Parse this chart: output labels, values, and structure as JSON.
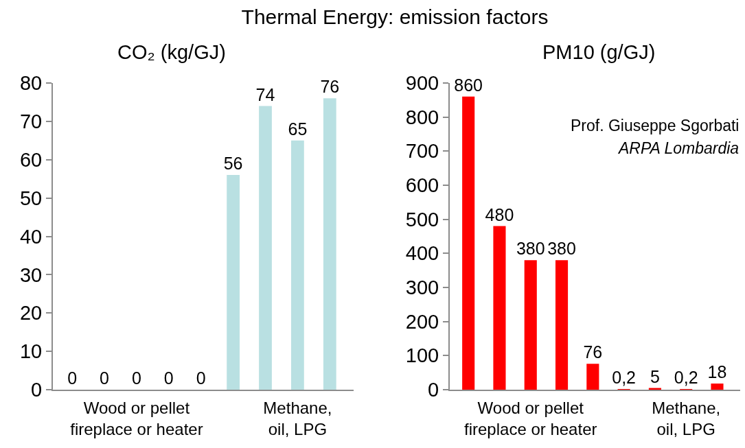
{
  "chart_data": [
    {
      "type": "bar",
      "title": "Thermal Energy: emission factors",
      "subtitle": "CO₂ (kg/GJ)",
      "categories": [
        null,
        null,
        "Wood or pellet fireplace or heater",
        null,
        null,
        null,
        null,
        "Methane, oil, LPG",
        null
      ],
      "values": [
        0,
        0,
        0,
        0,
        0,
        56,
        74,
        65,
        76
      ],
      "color": "#b9e0e2",
      "ylim": [
        0,
        80
      ],
      "yticks": [
        0,
        10,
        20,
        30,
        40,
        50,
        60,
        70,
        80
      ],
      "data_labels": true
    },
    {
      "type": "bar",
      "subtitle": "PM10 (g/GJ)",
      "categories": [
        null,
        null,
        "Wood or pellet fireplace or heater",
        null,
        null,
        null,
        null,
        "Methane, oil, LPG",
        null
      ],
      "values": [
        860,
        480,
        380,
        380,
        76,
        0.2,
        5,
        0.2,
        18
      ],
      "value_labels": [
        "860",
        "480",
        "380",
        "380",
        "76",
        "0,2",
        "5",
        "0,2",
        "18"
      ],
      "color": "#ff0000",
      "ylim": [
        0,
        900
      ],
      "yticks": [
        0,
        100,
        200,
        300,
        400,
        500,
        600,
        700,
        800,
        900
      ],
      "annotations": [
        "Prof. Giuseppe Sgorbati",
        "ARPA Lombardia"
      ]
    }
  ]
}
